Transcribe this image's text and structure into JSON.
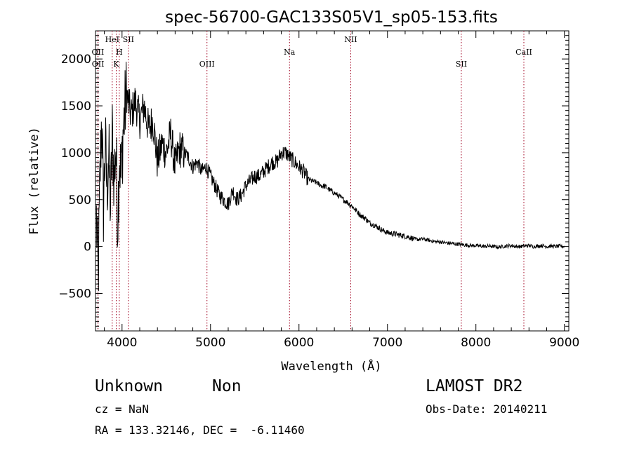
{
  "colors": {
    "spectrum": "#000000",
    "line_marker": "#a0001f",
    "axes": "#000000",
    "background": "#ffffff"
  },
  "chart_data": {
    "type": "line",
    "title": "spec-56700-GAC133S05V1_sp05-153.fits",
    "xlabel": "Wavelength (Å)",
    "ylabel": "Flux (relative)",
    "xlim": [
      3700,
      9050
    ],
    "ylim": [
      -900,
      2300
    ],
    "xticks": [
      4000,
      5000,
      6000,
      7000,
      8000,
      9000
    ],
    "yticks": [
      -500,
      0,
      500,
      1000,
      1500,
      2000
    ],
    "grid": false,
    "series": [
      {
        "x": [
          3710,
          3730,
          3750,
          3770,
          3790,
          3810,
          3830,
          3850,
          3870,
          3890,
          3910,
          3930,
          3950,
          3970,
          3990,
          4010,
          4050,
          4100,
          4150,
          4200,
          4250,
          4300,
          4350,
          4400,
          4450,
          4500,
          4550,
          4600,
          4650,
          4700,
          4750,
          4800,
          4850,
          4900,
          4950,
          5000,
          5050,
          5100,
          5150,
          5200,
          5250,
          5300,
          5350,
          5400,
          5450,
          5500,
          5550,
          5600,
          5650,
          5700,
          5750,
          5800,
          5850,
          5900,
          5950,
          6000,
          6050,
          6100,
          6150,
          6200,
          6250,
          6300,
          6350,
          6400,
          6450,
          6500,
          6550,
          6600,
          6650,
          6700,
          6750,
          6800,
          6850,
          6900,
          6950,
          7000,
          7050,
          7100,
          7150,
          7200,
          7250,
          7300,
          7350,
          7400,
          7450,
          7500,
          7550,
          7600,
          7650,
          7700,
          7750,
          7800,
          7850,
          7900,
          7950,
          8000,
          8050,
          8100,
          8150,
          8200,
          8250,
          8300,
          8350,
          8400,
          8450,
          8500,
          8550,
          8600,
          8650,
          8700,
          8750,
          8800,
          8850,
          8900,
          8950,
          9000
        ],
        "y": [
          300,
          -400,
          700,
          1400,
          400,
          1100,
          600,
          1000,
          400,
          1200,
          700,
          1100,
          250,
          1000,
          700,
          1200,
          1650,
          1400,
          1550,
          1350,
          1500,
          1250,
          1350,
          900,
          1100,
          1000,
          1200,
          850,
          1050,
          1000,
          950,
          850,
          900,
          800,
          850,
          750,
          650,
          550,
          500,
          450,
          600,
          500,
          550,
          650,
          700,
          750,
          750,
          800,
          850,
          900,
          900,
          1000,
          1000,
          950,
          900,
          850,
          800,
          720,
          700,
          680,
          650,
          640,
          600,
          570,
          540,
          500,
          470,
          430,
          380,
          330,
          300,
          250,
          230,
          200,
          170,
          150,
          140,
          130,
          120,
          110,
          100,
          80,
          75,
          80,
          70,
          60,
          50,
          50,
          40,
          35,
          30,
          25,
          20,
          15,
          10,
          10,
          5,
          0,
          5,
          0,
          -5,
          0,
          5,
          10,
          0,
          0,
          5,
          10,
          0,
          5,
          10,
          0,
          5,
          0,
          5,
          0
        ]
      }
    ],
    "lines": [
      {
        "name": "OII",
        "x": 3727,
        "row": 1
      },
      {
        "name": "OII",
        "x": 3729,
        "row": 2
      },
      {
        "name": "HeI",
        "x": 3889,
        "row": 0
      },
      {
        "name": "K",
        "x": 3934,
        "row": 2
      },
      {
        "name": "H",
        "x": 3969,
        "row": 1
      },
      {
        "name": "SII",
        "x": 4072,
        "row": 0
      },
      {
        "name": "OIII",
        "x": 4960,
        "row": 2
      },
      {
        "name": "Na",
        "x": 5893,
        "row": 1
      },
      {
        "name": "NII",
        "x": 6585,
        "row": 0
      },
      {
        "name": "SII",
        "x": 7835,
        "row": 2
      },
      {
        "name": "CaII",
        "x": 8542,
        "row": 1
      }
    ]
  },
  "info": {
    "object_class": "Unknown",
    "subclass": "Non",
    "survey": "LAMOST DR2",
    "redshift": "cz = NaN",
    "obs_date": "Obs-Date: 20140211",
    "coords": "RA = 133.32146, DEC =  -6.11460"
  }
}
